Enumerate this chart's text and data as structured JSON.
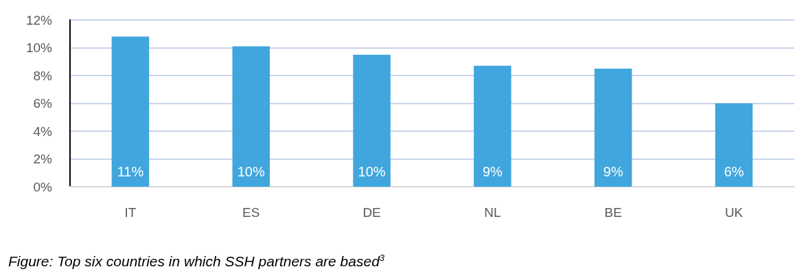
{
  "chart_data": {
    "type": "bar",
    "categories": [
      "IT",
      "ES",
      "DE",
      "NL",
      "BE",
      "UK"
    ],
    "values": [
      10.8,
      10.1,
      9.5,
      8.7,
      8.5,
      6.0
    ],
    "value_labels": [
      "11%",
      "10%",
      "10%",
      "9%",
      "9%",
      "6%"
    ],
    "color": "#40a6dd",
    "ylim": [
      0,
      12
    ],
    "yticks": [
      {
        "value": 0,
        "label": "0%"
      },
      {
        "value": 2,
        "label": "2%"
      },
      {
        "value": 4,
        "label": "4%"
      },
      {
        "value": 6,
        "label": "6%"
      },
      {
        "value": 8,
        "label": "8%"
      },
      {
        "value": 10,
        "label": "10%"
      },
      {
        "value": 12,
        "label": "12%"
      }
    ],
    "grid": "y",
    "annotations": [
      "Figure: Top six countries in which SSH partners are based$^{3}$"
    ]
  }
}
